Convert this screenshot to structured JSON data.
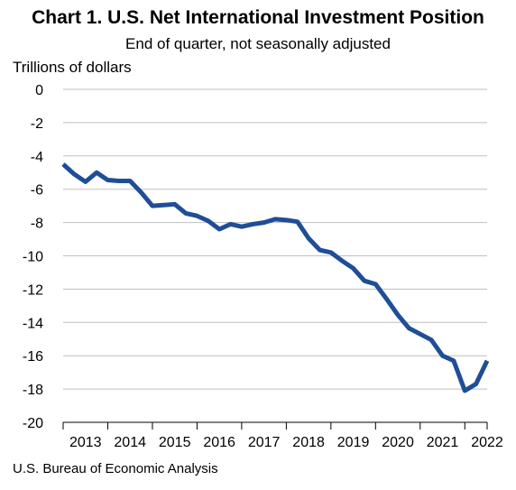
{
  "title": "Chart 1. U.S. Net International Investment Position",
  "subtitle": "End of quarter, not seasonally adjusted",
  "source": "U.S. Bureau of Economic Analysis",
  "chart_data": {
    "type": "line",
    "title": "Chart 1. U.S. Net International Investment Position",
    "subtitle": "End of quarter, not seasonally adjusted",
    "ylabel": "Trillions of dollars",
    "xlabel": "",
    "ylim": [
      -20,
      0
    ],
    "yticks": [
      0,
      -2,
      -4,
      -6,
      -8,
      -10,
      -12,
      -14,
      -16,
      -18,
      -20
    ],
    "xtick_labels": [
      "2013",
      "2014",
      "2015",
      "2016",
      "2017",
      "2018",
      "2019",
      "2020",
      "2021",
      "2022"
    ],
    "grid": "horizontal",
    "line_color": "#1f4e96",
    "series": [
      {
        "x": [
          "2012Q4",
          "2013Q1",
          "2013Q2",
          "2013Q3",
          "2013Q4",
          "2014Q1",
          "2014Q2",
          "2014Q3",
          "2014Q4",
          "2015Q1",
          "2015Q2",
          "2015Q3",
          "2015Q4",
          "2016Q1",
          "2016Q2",
          "2016Q3",
          "2016Q4",
          "2017Q1",
          "2017Q2",
          "2017Q3",
          "2017Q4",
          "2018Q1",
          "2018Q2",
          "2018Q3",
          "2018Q4",
          "2019Q1",
          "2019Q2",
          "2019Q3",
          "2019Q4",
          "2020Q1",
          "2020Q2",
          "2020Q3",
          "2020Q4",
          "2021Q1",
          "2021Q2",
          "2021Q3",
          "2021Q4",
          "2022Q1",
          "2022Q2"
        ],
        "values": [
          -4.5,
          -5.1,
          -5.55,
          -5.0,
          -5.45,
          -5.5,
          -5.5,
          -6.2,
          -7.0,
          -6.95,
          -6.9,
          -7.45,
          -7.6,
          -7.9,
          -8.4,
          -8.1,
          -8.25,
          -8.1,
          -8.0,
          -7.8,
          -7.85,
          -7.95,
          -8.95,
          -9.65,
          -9.8,
          -10.3,
          -10.75,
          -11.5,
          -11.7,
          -12.6,
          -13.55,
          -14.35,
          -14.7,
          -15.05,
          -16.0,
          -16.3,
          -18.1,
          -17.7,
          -16.3
        ]
      }
    ]
  }
}
